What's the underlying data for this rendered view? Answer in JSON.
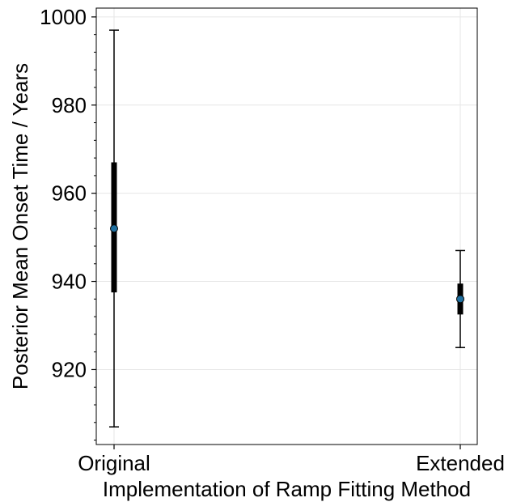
{
  "chart_data": {
    "type": "scatter",
    "title": "",
    "xlabel": "Implementation of Ramp Fitting Method",
    "ylabel": "Posterior Mean Onset Time / Years",
    "categories": [
      "Original",
      "Extended"
    ],
    "ylim": [
      903,
      1002
    ],
    "yticks": [
      920,
      940,
      960,
      980,
      1000
    ],
    "yticks_minor_step": 4,
    "grid": true,
    "points": [
      {
        "category": "Original",
        "mean": 952,
        "inner_low": 937.5,
        "inner_high": 967,
        "outer_low": 907,
        "outer_high": 997
      },
      {
        "category": "Extended",
        "mean": 936,
        "inner_low": 932.5,
        "inner_high": 939.5,
        "outer_low": 925,
        "outer_high": 947
      }
    ],
    "colors": {
      "marker": "#1f6f9f",
      "bars": "#000000",
      "grid": "#e6e6e6",
      "frame": "#000000"
    }
  }
}
